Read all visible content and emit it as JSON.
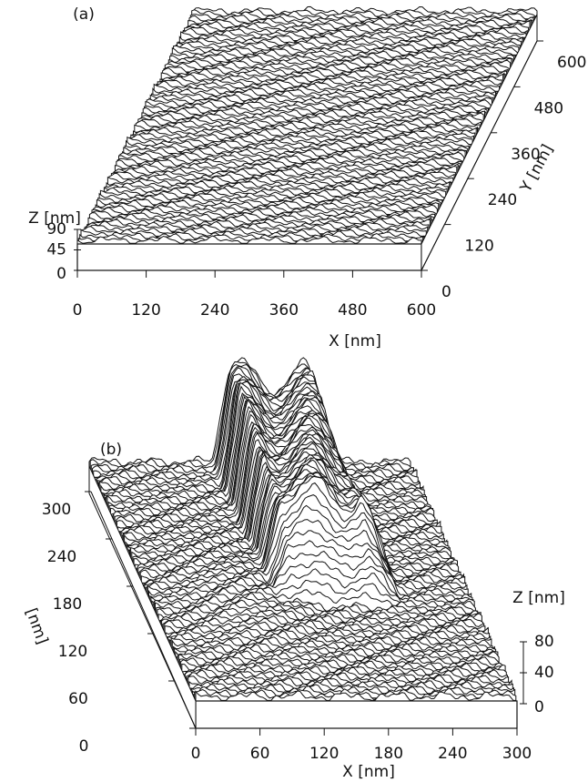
{
  "chart_data": [
    {
      "type": "surface",
      "panel_label": "(a)",
      "x_label": "X  [nm]",
      "y_label": "Y  [nm]",
      "z_label": "Z  [nm]",
      "xlim": [
        0,
        600
      ],
      "xticks": [
        0,
        120,
        240,
        360,
        480,
        600
      ],
      "ylim": [
        0,
        600
      ],
      "yticks": [
        0,
        120,
        240,
        360,
        480,
        600
      ],
      "zlim": [
        0,
        90
      ],
      "zticks": [
        0,
        45,
        90
      ]
    },
    {
      "type": "surface",
      "panel_label": "(b)",
      "x_label": "X  [nm]",
      "y_label": "[nm]",
      "z_label": "Z  [nm]",
      "xlim": [
        0,
        300
      ],
      "xticks": [
        0,
        60,
        120,
        180,
        240,
        300
      ],
      "ylim": [
        0,
        300
      ],
      "yticks": [
        0,
        60,
        120,
        180,
        240,
        300
      ],
      "zlim": [
        0,
        80
      ],
      "zticks": [
        0,
        40,
        80
      ]
    }
  ]
}
